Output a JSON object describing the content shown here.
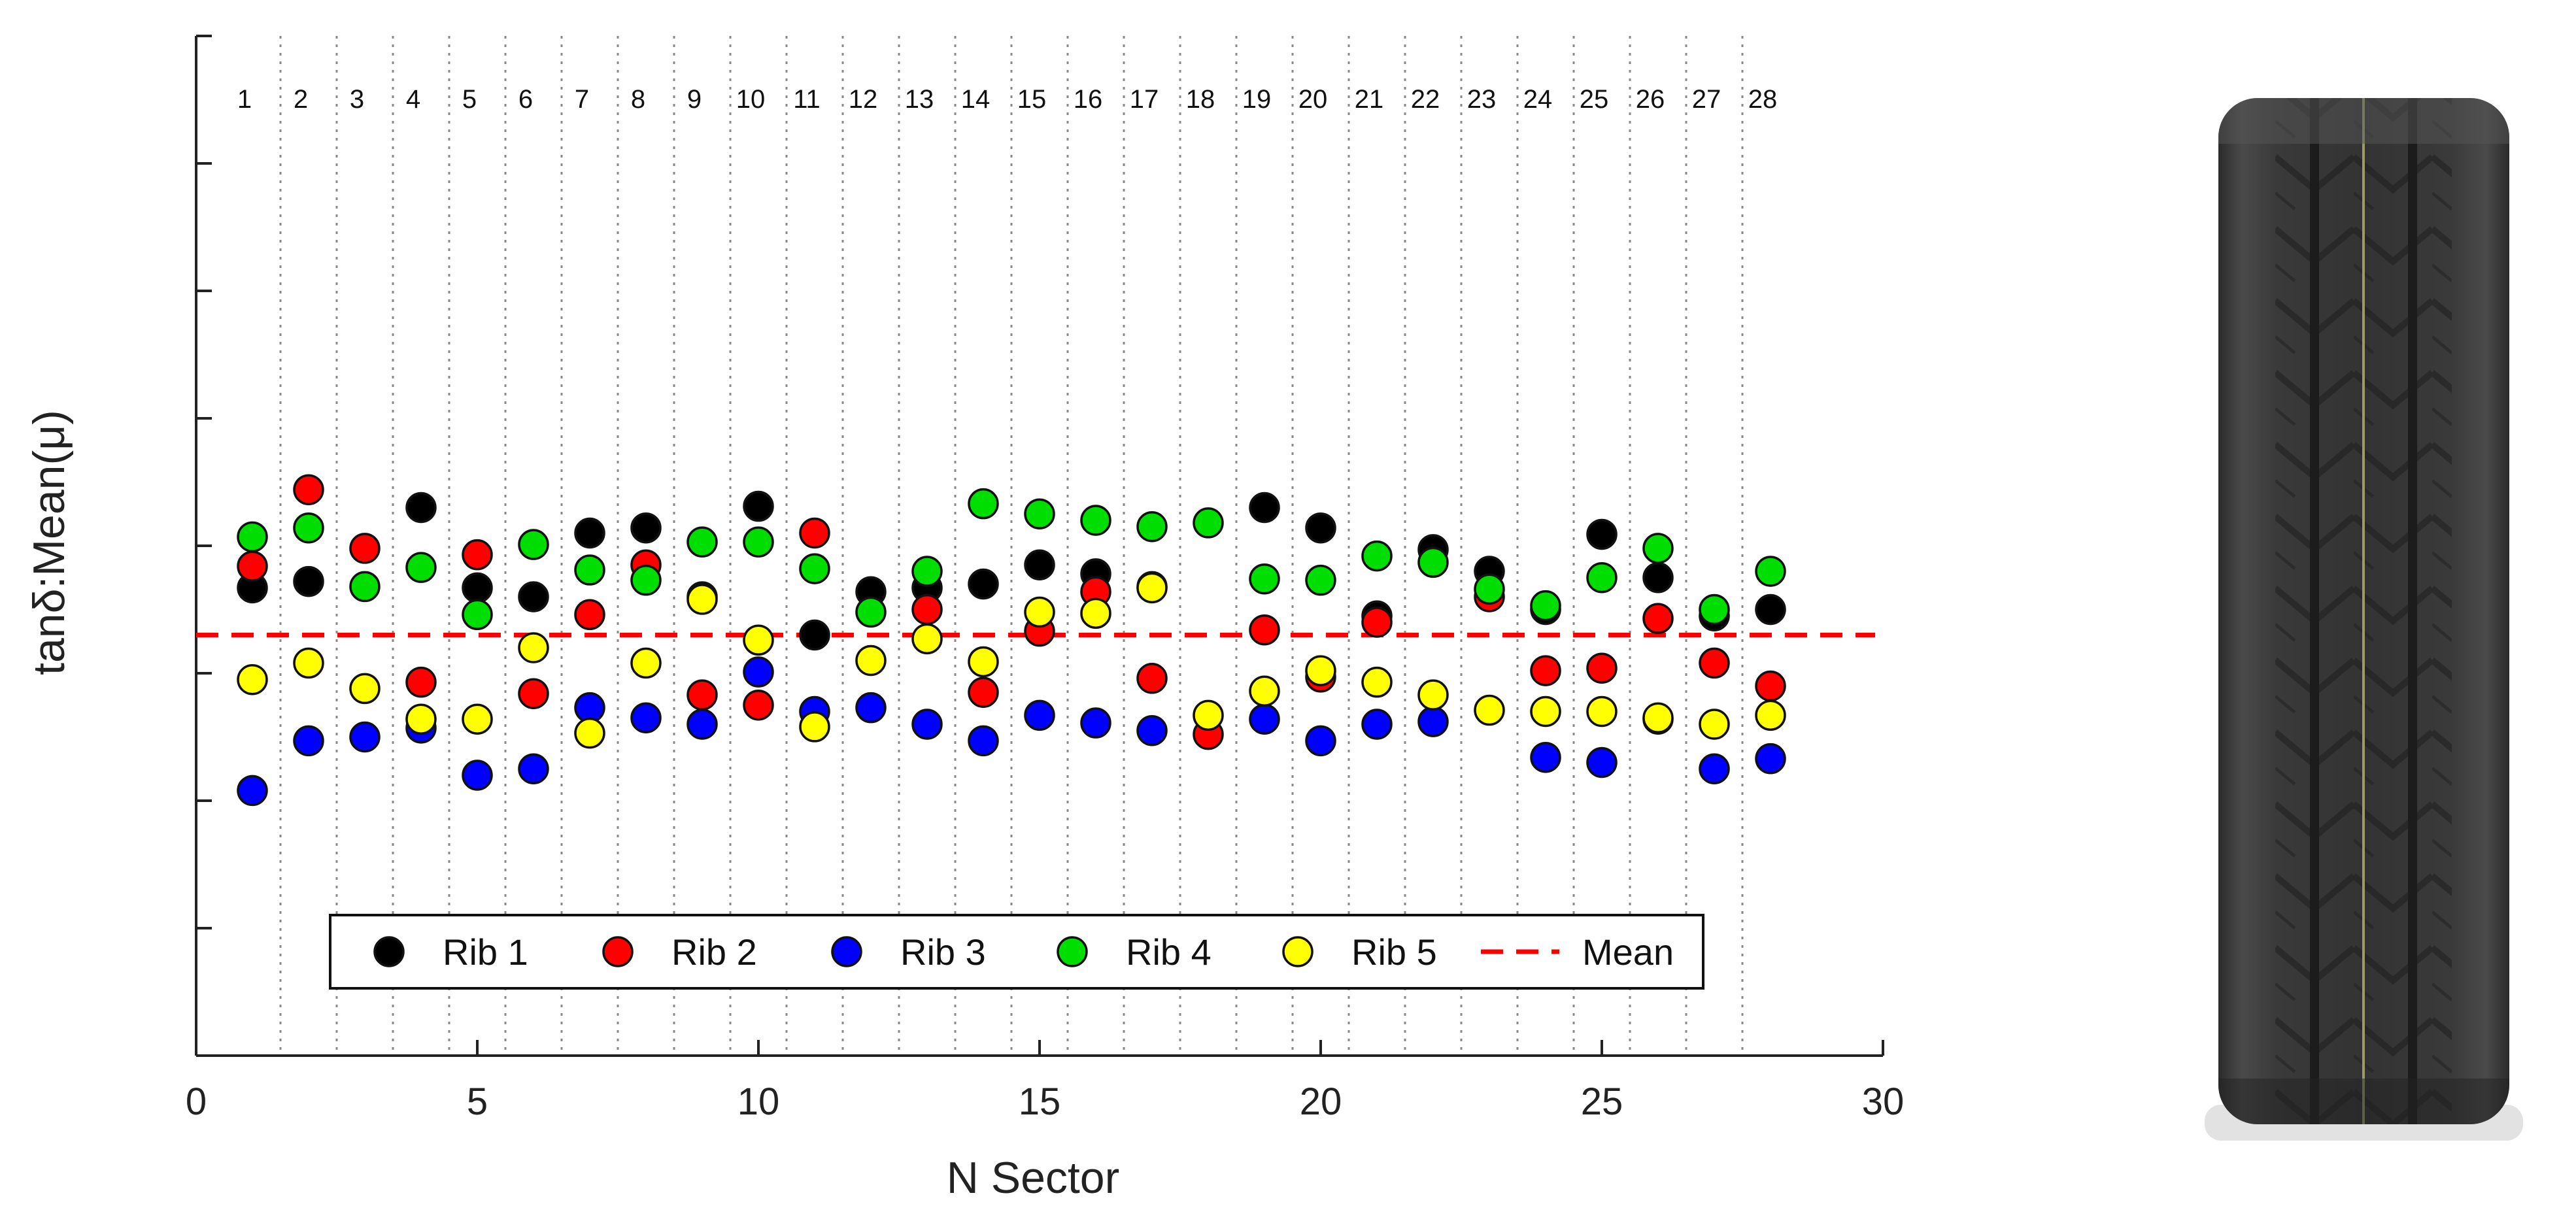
{
  "chart_data": {
    "type": "scatter",
    "xlabel": "N Sector",
    "ylabel": "tanδ:Mean(μ)",
    "xlim": [
      0,
      30
    ],
    "ylim": [
      0,
      8
    ],
    "x_ticks": [
      "0",
      "5",
      "10",
      "15",
      "20",
      "25",
      "30"
    ],
    "grid": "vertical dotted separators between sectors",
    "sector_labels": [
      "1",
      "2",
      "3",
      "4",
      "5",
      "6",
      "7",
      "8",
      "9",
      "10",
      "11",
      "12",
      "13",
      "14",
      "15",
      "16",
      "17",
      "18",
      "19",
      "20",
      "21",
      "22",
      "23",
      "24",
      "25",
      "26",
      "27",
      "28"
    ],
    "x": [
      1,
      2,
      3,
      4,
      5,
      6,
      7,
      8,
      9,
      10,
      11,
      12,
      13,
      14,
      15,
      16,
      17,
      18,
      19,
      20,
      21,
      22,
      23,
      24,
      25,
      26,
      27,
      28
    ],
    "series": [
      {
        "name": "Rib 1",
        "color": "#000000",
        "values": [
          3.67,
          3.72,
          null,
          4.3,
          3.67,
          3.6,
          4.1,
          4.14,
          3.6,
          4.31,
          3.3,
          3.64,
          3.67,
          3.7,
          3.85,
          3.78,
          3.68,
          null,
          4.3,
          4.14,
          3.45,
          3.97,
          3.8,
          3.5,
          4.09,
          3.75,
          3.45,
          3.5
        ]
      },
      {
        "name": "Rib 2",
        "color": "#ff0000",
        "values": [
          3.84,
          4.44,
          3.98,
          2.93,
          3.93,
          2.84,
          3.46,
          3.85,
          2.83,
          2.75,
          4.1,
          null,
          3.5,
          2.85,
          3.33,
          3.64,
          2.96,
          2.52,
          3.34,
          2.97,
          3.4,
          null,
          3.6,
          3.02,
          3.04,
          3.43,
          3.08,
          2.9
        ]
      },
      {
        "name": "Rib 3",
        "color": "#0000ff",
        "values": [
          2.08,
          2.47,
          2.5,
          2.57,
          2.2,
          2.25,
          2.73,
          2.65,
          2.6,
          3.01,
          2.7,
          2.73,
          2.6,
          2.47,
          2.67,
          2.61,
          2.55,
          null,
          2.64,
          2.47,
          2.6,
          2.62,
          null,
          2.34,
          2.3,
          2.64,
          2.25,
          2.33
        ]
      },
      {
        "name": "Rib 4",
        "color": "#00dd00",
        "values": [
          4.07,
          4.14,
          3.68,
          3.83,
          3.46,
          4.01,
          3.81,
          3.73,
          4.03,
          4.03,
          3.82,
          3.48,
          3.8,
          4.33,
          4.25,
          4.2,
          4.15,
          4.18,
          3.74,
          3.73,
          3.92,
          3.87,
          3.66,
          3.53,
          3.75,
          3.98,
          3.5,
          3.8
        ]
      },
      {
        "name": "Rib 5",
        "color": "#ffff00",
        "values": [
          2.95,
          3.08,
          2.88,
          2.64,
          2.64,
          3.2,
          2.53,
          3.08,
          3.58,
          3.26,
          2.58,
          3.1,
          3.27,
          3.09,
          3.48,
          3.47,
          3.67,
          2.67,
          2.86,
          3.02,
          2.93,
          2.83,
          2.71,
          2.7,
          2.7,
          2.65,
          2.6,
          2.67
        ]
      }
    ],
    "mean": {
      "name": "Mean",
      "color": "#ff0000",
      "value": 3.3
    },
    "legend": {
      "placement": "bottom-center",
      "entries": [
        "Rib 1",
        "Rib 2",
        "Rib 3",
        "Rib 4",
        "Rib 5",
        "Mean"
      ]
    }
  },
  "image": {
    "label": "tire-tread-photo"
  }
}
